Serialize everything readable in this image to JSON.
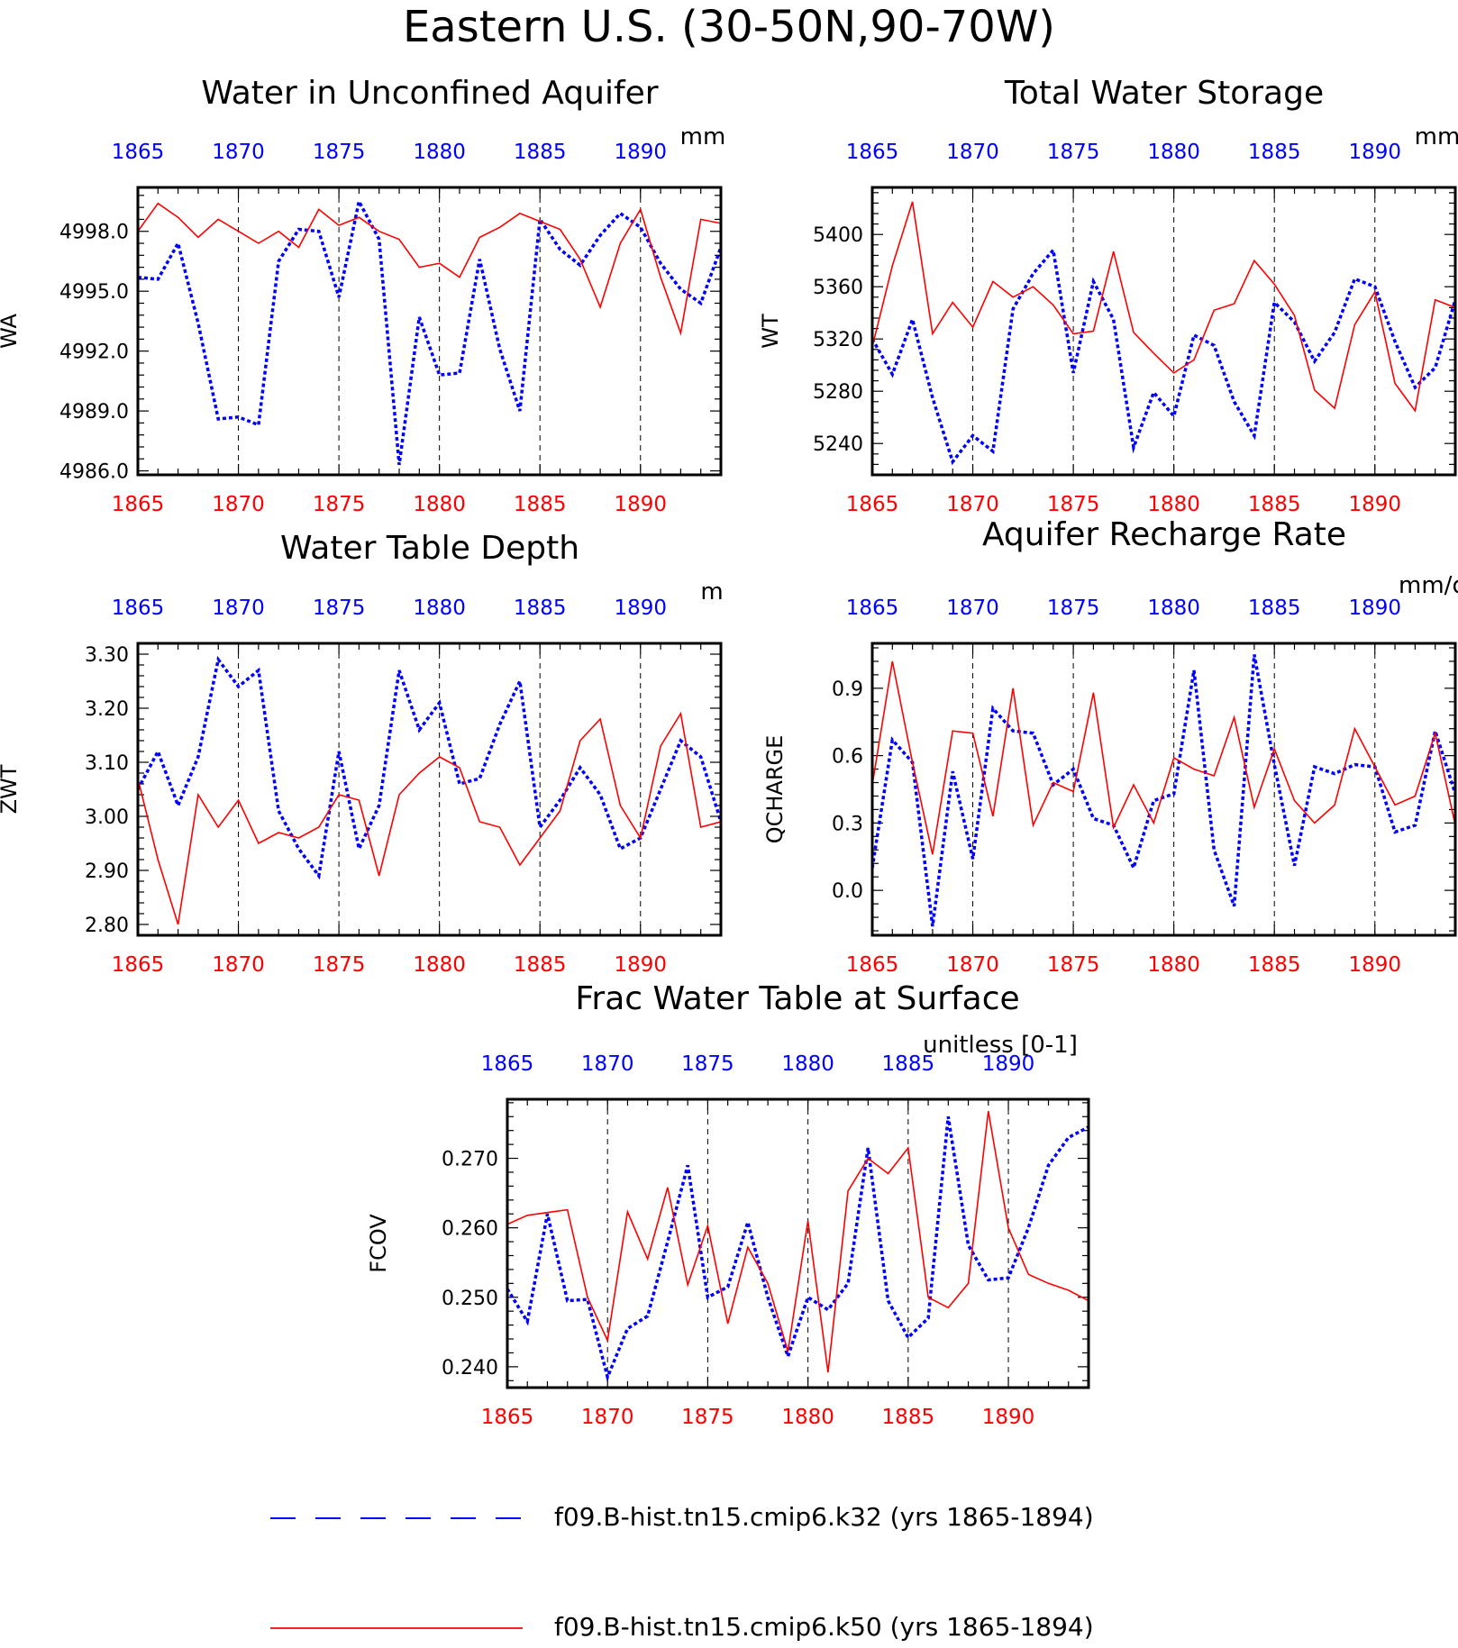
{
  "title": "Eastern U.S. (30-50N,90-70W)",
  "colors": {
    "k32": "#0000ff",
    "k50": "#ff0000",
    "axis": "#000000"
  },
  "legend": [
    {
      "label": "f09.B-hist.tn15.cmip6.k32 (yrs 1865-1894)",
      "color": "#0000ff",
      "style": "dashed"
    },
    {
      "label": "f09.B-hist.tn15.cmip6.k50 (yrs 1865-1894)",
      "color": "#ff0000",
      "style": "solid"
    }
  ],
  "chart_data": [
    {
      "type": "line",
      "title": "Water in Unconfined Aquifer",
      "units": "mm",
      "ylabel": "WA",
      "x": [
        1865,
        1866,
        1867,
        1868,
        1869,
        1870,
        1871,
        1872,
        1873,
        1874,
        1875,
        1876,
        1877,
        1878,
        1879,
        1880,
        1881,
        1882,
        1883,
        1884,
        1885,
        1886,
        1887,
        1888,
        1889,
        1890,
        1891,
        1892,
        1893,
        1894
      ],
      "xlim": [
        1865,
        1894
      ],
      "ylim": [
        4985.8,
        5000.2
      ],
      "yticks": [
        4986.0,
        4989.0,
        4992.0,
        4995.0,
        4998.0
      ],
      "ytick_labels": [
        "4986.0",
        "4989.0",
        "4992.0",
        "4995.0",
        "4998.0"
      ],
      "xticks": [
        1865,
        1870,
        1875,
        1880,
        1885,
        1890
      ],
      "xtick_labels": [
        "1865",
        "1870",
        "1875",
        "1880",
        "1885",
        "1890"
      ],
      "grid": "vertical dashed at labeled ticks",
      "series": [
        {
          "name": "f09.B-hist.tn15.cmip6.k32",
          "color": "#0000ff",
          "style": "dotted",
          "values": [
            4995.7,
            4995.6,
            4997.4,
            4993.4,
            4988.6,
            4988.7,
            4988.3,
            4996.5,
            4998.1,
            4998.0,
            4994.7,
            4999.5,
            4997.6,
            4986.3,
            4993.7,
            4990.8,
            4990.9,
            4996.6,
            4992.1,
            4989.0,
            4998.6,
            4997.1,
            4996.3,
            4997.8,
            4998.9,
            4998.2,
            4996.4,
            4995.1,
            4994.4,
            4997.2
          ]
        },
        {
          "name": "f09.B-hist.tn15.cmip6.k50",
          "color": "#ff0000",
          "style": "solid",
          "values": [
            4998.0,
            4999.4,
            4998.7,
            4997.7,
            4998.6,
            4998.0,
            4997.4,
            4998.0,
            4997.2,
            4999.1,
            4998.3,
            4998.7,
            4998.0,
            4997.6,
            4996.2,
            4996.4,
            4995.7,
            4997.7,
            4998.2,
            4998.9,
            4998.5,
            4998.1,
            4996.6,
            4994.2,
            4997.4,
            4999.1,
            4995.7,
            4992.9,
            4998.6,
            4998.4
          ]
        }
      ]
    },
    {
      "type": "line",
      "title": "Total Water Storage",
      "units": "mm",
      "ylabel": "WT",
      "x": [
        1865,
        1866,
        1867,
        1868,
        1869,
        1870,
        1871,
        1872,
        1873,
        1874,
        1875,
        1876,
        1877,
        1878,
        1879,
        1880,
        1881,
        1882,
        1883,
        1884,
        1885,
        1886,
        1887,
        1888,
        1889,
        1890,
        1891,
        1892,
        1893,
        1894
      ],
      "xlim": [
        1865,
        1894
      ],
      "ylim": [
        5216,
        5436
      ],
      "yticks": [
        5240,
        5280,
        5320,
        5360,
        5400
      ],
      "ytick_labels": [
        "5240",
        "5280",
        "5320",
        "5360",
        "5400"
      ],
      "xticks": [
        1865,
        1870,
        1875,
        1880,
        1885,
        1890
      ],
      "xtick_labels": [
        "1865",
        "1870",
        "1875",
        "1880",
        "1885",
        "1890"
      ],
      "grid": "vertical dashed at labeled ticks",
      "series": [
        {
          "name": "f09.B-hist.tn15.cmip6.k32",
          "color": "#0000ff",
          "style": "dotted",
          "values": [
            5320,
            5293,
            5335,
            5275,
            5226,
            5246,
            5234,
            5343,
            5370,
            5388,
            5294,
            5364,
            5335,
            5237,
            5279,
            5261,
            5323,
            5315,
            5272,
            5246,
            5348,
            5333,
            5303,
            5325,
            5366,
            5360,
            5318,
            5283,
            5298,
            5350
          ]
        },
        {
          "name": "f09.B-hist.tn15.cmip6.k50",
          "color": "#ff0000",
          "style": "solid",
          "values": [
            5314,
            5376,
            5425,
            5324,
            5348,
            5329,
            5364,
            5352,
            5360,
            5346,
            5324,
            5326,
            5387,
            5325,
            5309,
            5294,
            5304,
            5342,
            5347,
            5380,
            5362,
            5338,
            5281,
            5267,
            5331,
            5356,
            5286,
            5265,
            5350,
            5344
          ]
        }
      ]
    },
    {
      "type": "line",
      "title": "Water Table Depth",
      "units": "m",
      "ylabel": "ZWT",
      "x": [
        1865,
        1866,
        1867,
        1868,
        1869,
        1870,
        1871,
        1872,
        1873,
        1874,
        1875,
        1876,
        1877,
        1878,
        1879,
        1880,
        1881,
        1882,
        1883,
        1884,
        1885,
        1886,
        1887,
        1888,
        1889,
        1890,
        1891,
        1892,
        1893,
        1894
      ],
      "xlim": [
        1865,
        1894
      ],
      "ylim": [
        2.78,
        3.32
      ],
      "yticks": [
        2.8,
        2.9,
        3.0,
        3.1,
        3.2,
        3.3
      ],
      "ytick_labels": [
        "2.80",
        "2.90",
        "3.00",
        "3.10",
        "3.20",
        "3.30"
      ],
      "xticks": [
        1865,
        1870,
        1875,
        1880,
        1885,
        1890
      ],
      "xtick_labels": [
        "1865",
        "1870",
        "1875",
        "1880",
        "1885",
        "1890"
      ],
      "grid": "vertical dashed at labeled ticks",
      "series": [
        {
          "name": "f09.B-hist.tn15.cmip6.k32",
          "color": "#0000ff",
          "style": "dotted",
          "values": [
            3.05,
            3.12,
            3.02,
            3.11,
            3.29,
            3.24,
            3.27,
            3.01,
            2.94,
            2.89,
            3.12,
            2.94,
            3.02,
            3.27,
            3.16,
            3.21,
            3.06,
            3.07,
            3.17,
            3.25,
            2.98,
            3.03,
            3.09,
            3.04,
            2.94,
            2.96,
            3.05,
            3.14,
            3.11,
            2.99
          ]
        },
        {
          "name": "f09.B-hist.tn15.cmip6.k50",
          "color": "#ff0000",
          "style": "solid",
          "values": [
            3.07,
            2.92,
            2.8,
            3.04,
            2.98,
            3.03,
            2.95,
            2.97,
            2.96,
            2.98,
            3.04,
            3.03,
            2.89,
            3.04,
            3.08,
            3.11,
            3.09,
            2.99,
            2.98,
            2.91,
            2.96,
            3.01,
            3.14,
            3.18,
            3.02,
            2.96,
            3.13,
            3.19,
            2.98,
            2.99
          ]
        }
      ]
    },
    {
      "type": "line",
      "title": "Aquifer Recharge Rate",
      "units": "mm/d",
      "ylabel": "QCHARGE",
      "x": [
        1865,
        1866,
        1867,
        1868,
        1869,
        1870,
        1871,
        1872,
        1873,
        1874,
        1875,
        1876,
        1877,
        1878,
        1879,
        1880,
        1881,
        1882,
        1883,
        1884,
        1885,
        1886,
        1887,
        1888,
        1889,
        1890,
        1891,
        1892,
        1893,
        1894
      ],
      "xlim": [
        1865,
        1894
      ],
      "ylim": [
        -0.2,
        1.1
      ],
      "yticks": [
        0.0,
        0.3,
        0.6,
        0.9
      ],
      "ytick_labels": [
        "0.0",
        "0.3",
        "0.6",
        "0.9"
      ],
      "xticks": [
        1865,
        1870,
        1875,
        1880,
        1885,
        1890
      ],
      "xtick_labels": [
        "1865",
        "1870",
        "1875",
        "1880",
        "1885",
        "1890"
      ],
      "grid": "vertical dashed at labeled ticks",
      "series": [
        {
          "name": "f09.B-hist.tn15.cmip6.k32",
          "color": "#0000ff",
          "style": "dotted",
          "values": [
            0.1,
            0.67,
            0.57,
            -0.16,
            0.53,
            0.14,
            0.81,
            0.71,
            0.7,
            0.47,
            0.54,
            0.32,
            0.29,
            0.1,
            0.4,
            0.43,
            0.98,
            0.18,
            -0.07,
            1.05,
            0.56,
            0.11,
            0.55,
            0.52,
            0.56,
            0.55,
            0.26,
            0.29,
            0.71,
            0.43
          ]
        },
        {
          "name": "f09.B-hist.tn15.cmip6.k50",
          "color": "#ff0000",
          "style": "solid",
          "values": [
            0.47,
            1.02,
            0.57,
            0.16,
            0.71,
            0.7,
            0.33,
            0.9,
            0.29,
            0.48,
            0.44,
            0.88,
            0.28,
            0.47,
            0.3,
            0.59,
            0.54,
            0.51,
            0.77,
            0.37,
            0.63,
            0.4,
            0.3,
            0.38,
            0.72,
            0.55,
            0.38,
            0.42,
            0.7,
            0.29
          ]
        }
      ]
    },
    {
      "type": "line",
      "title": "Frac Water Table at Surface",
      "units": "unitless [0-1]",
      "ylabel": "FCOV",
      "x": [
        1865,
        1866,
        1867,
        1868,
        1869,
        1870,
        1871,
        1872,
        1873,
        1874,
        1875,
        1876,
        1877,
        1878,
        1879,
        1880,
        1881,
        1882,
        1883,
        1884,
        1885,
        1886,
        1887,
        1888,
        1889,
        1890,
        1891,
        1892,
        1893,
        1894
      ],
      "xlim": [
        1865,
        1894
      ],
      "ylim": [
        0.237,
        0.2785
      ],
      "yticks": [
        0.24,
        0.25,
        0.26,
        0.27
      ],
      "ytick_labels": [
        "0.240",
        "0.250",
        "0.260",
        "0.270"
      ],
      "xticks": [
        1865,
        1870,
        1875,
        1880,
        1885,
        1890
      ],
      "xtick_labels": [
        "1865",
        "1870",
        "1875",
        "1880",
        "1885",
        "1890"
      ],
      "grid": "vertical dashed at labeled ticks",
      "series": [
        {
          "name": "f09.B-hist.tn15.cmip6.k32",
          "color": "#0000ff",
          "style": "dotted",
          "values": [
            0.2512,
            0.2465,
            0.262,
            0.2495,
            0.2497,
            0.2385,
            0.2455,
            0.2473,
            0.258,
            0.269,
            0.25,
            0.2515,
            0.2608,
            0.25,
            0.2415,
            0.25,
            0.2482,
            0.252,
            0.2715,
            0.2495,
            0.2442,
            0.247,
            0.276,
            0.2575,
            0.2525,
            0.2528,
            0.26,
            0.269,
            0.273,
            0.2745
          ]
        },
        {
          "name": "f09.B-hist.tn15.cmip6.k50",
          "color": "#ff0000",
          "style": "solid",
          "values": [
            0.2605,
            0.2618,
            0.2622,
            0.2626,
            0.25,
            0.2438,
            0.2623,
            0.2555,
            0.2658,
            0.2518,
            0.2603,
            0.2462,
            0.2572,
            0.252,
            0.2422,
            0.261,
            0.2392,
            0.2653,
            0.27,
            0.2678,
            0.2715,
            0.25,
            0.2485,
            0.252,
            0.2768,
            0.26,
            0.2533,
            0.252,
            0.251,
            0.2495
          ]
        }
      ]
    }
  ]
}
